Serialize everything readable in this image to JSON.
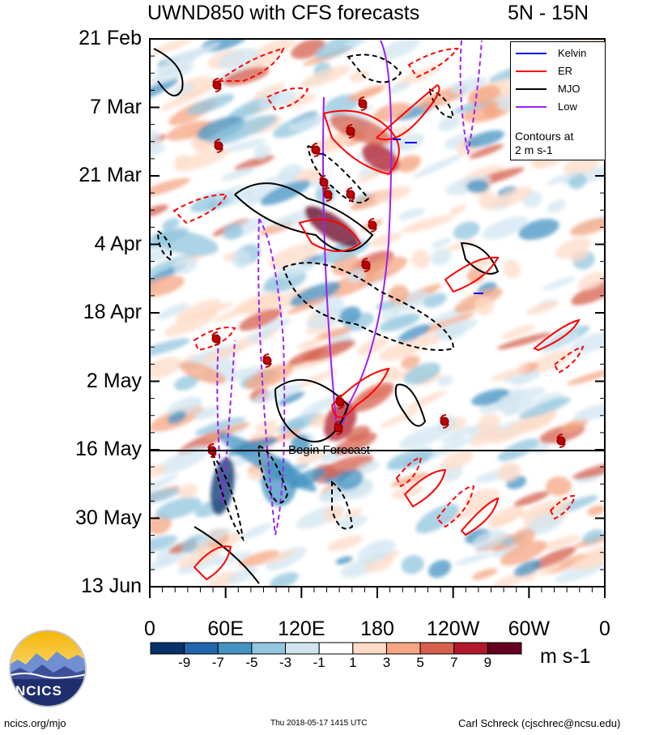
{
  "header": {
    "title": "UWND850 with CFS forecasts",
    "region": "5N - 15N"
  },
  "chart_data": {
    "type": "heatmap",
    "title": "UWND850 with CFS forecasts",
    "subtitle": "5N - 15N",
    "y_ticks": [
      "21 Feb",
      "7 Mar",
      "21 Mar",
      "4 Apr",
      "18 Apr",
      "2 May",
      "16 May",
      "30 May",
      "13 Jun"
    ],
    "x_ticks": [
      "0",
      "60E",
      "120E",
      "180",
      "120W",
      "60W",
      "0"
    ],
    "x_range": [
      0,
      360
    ],
    "annotation": "Begin Forecast",
    "legend": [
      {
        "name": "Kelvin",
        "color": "#0000ff"
      },
      {
        "name": "ER",
        "color": "#ff0000"
      },
      {
        "name": "MJO",
        "color": "#000000"
      },
      {
        "name": "Low",
        "color": "#a020f0"
      }
    ],
    "legend_note": [
      "Contours at",
      "2 m s-1"
    ],
    "colorbar": {
      "levels": [
        "-9",
        "-7",
        "-5",
        "-3",
        "-1",
        "1",
        "3",
        "5",
        "7",
        "9"
      ],
      "colors": [
        "#08306b",
        "#2166ac",
        "#4393c3",
        "#92c5de",
        "#d1e5f0",
        "#ffffff",
        "#fddbc7",
        "#f4a582",
        "#d6604d",
        "#b2182b",
        "#67001f"
      ],
      "units": "m s-1"
    },
    "legend_placement": "top-right"
  },
  "footer": {
    "logo_text": "NCICS",
    "url": "ncics.org/mjo",
    "timestamp": "Thu 2018-05-17 1415 UTC",
    "author": "Carl Schreck (cjschrec@ncsu.edu)"
  }
}
